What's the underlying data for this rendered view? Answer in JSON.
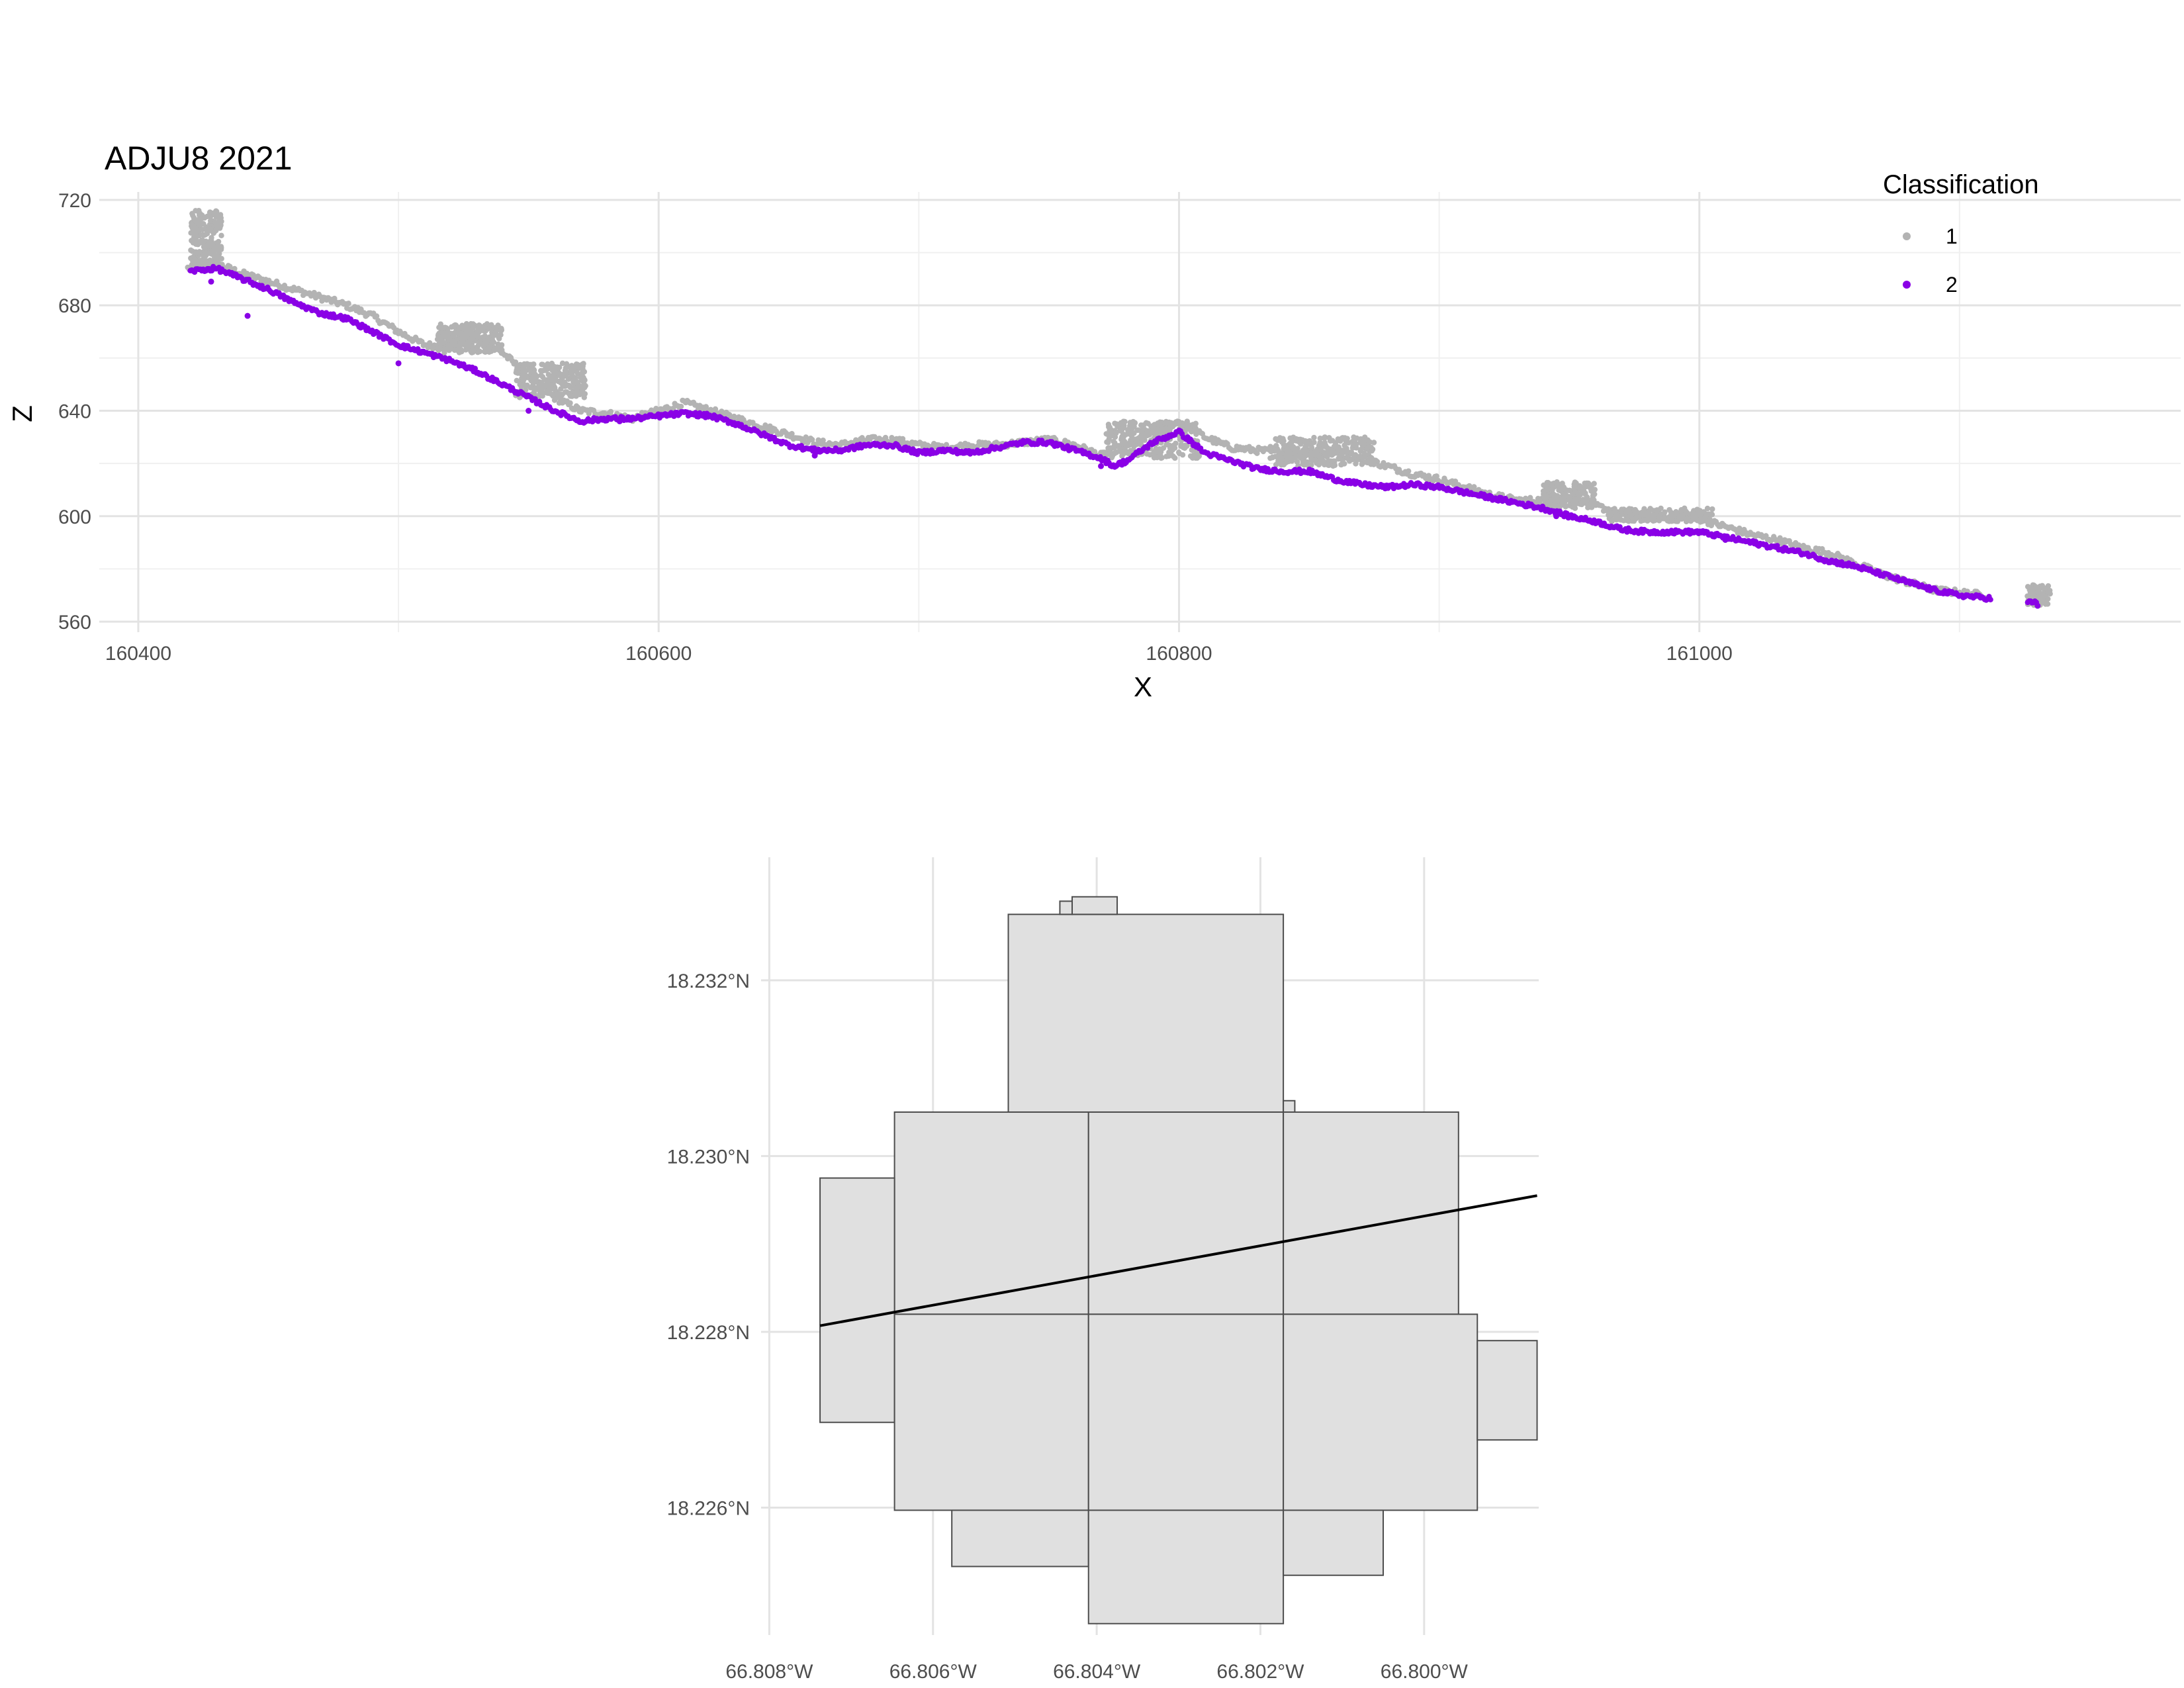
{
  "colors": {
    "background": "#ffffff",
    "grid_major": "#e3e3e3",
    "grid_minor": "#f0f0f0",
    "class_1": "#b3b3b3",
    "class_2": "#8a00e6",
    "tile_fill": "#e0e0e0",
    "tile_stroke": "#4d4d4d",
    "line": "#000000"
  },
  "chart_data": [
    {
      "type": "scatter",
      "title": "ADJU8 2021",
      "xlabel": "X",
      "ylabel": "Z",
      "xlim": [
        160385,
        161185
      ],
      "ylim": [
        556,
        723
      ],
      "x_ticks": [
        160400,
        160600,
        160800,
        161000
      ],
      "x_tick_labels": [
        "160400",
        "160600",
        "160800",
        "161000"
      ],
      "y_ticks": [
        560,
        600,
        640,
        680,
        720
      ],
      "y_tick_labels": [
        "560",
        "600",
        "640",
        "680",
        "720"
      ],
      "grid": true,
      "legend": {
        "title": "Classification",
        "placement": "top-right",
        "entries": [
          {
            "label": "1",
            "color_key": "class_1"
          },
          {
            "label": "2",
            "color_key": "class_2"
          }
        ]
      },
      "series": [
        {
          "name": "1",
          "color_key": "class_1",
          "profile": [
            [
              160419,
              694
            ],
            [
              160424,
              695
            ],
            [
              160428,
              697
            ],
            [
              160432,
              695
            ],
            [
              160440,
              692
            ],
            [
              160450,
              689
            ],
            [
              160460,
              686
            ],
            [
              160470,
              683
            ],
            [
              160480,
              680
            ],
            [
              160490,
              676
            ],
            [
              160500,
              670
            ],
            [
              160510,
              665
            ],
            [
              160520,
              664
            ],
            [
              160530,
              668
            ],
            [
              160540,
              662
            ],
            [
              160550,
              653
            ],
            [
              160560,
              645
            ],
            [
              160570,
              640
            ],
            [
              160580,
              639
            ],
            [
              160590,
              637
            ],
            [
              160600,
              640
            ],
            [
              160610,
              643
            ],
            [
              160620,
              640
            ],
            [
              160630,
              637
            ],
            [
              160640,
              634
            ],
            [
              160650,
              631
            ],
            [
              160660,
              628
            ],
            [
              160670,
              627
            ],
            [
              160680,
              629
            ],
            [
              160690,
              629
            ],
            [
              160700,
              627
            ],
            [
              160710,
              626
            ],
            [
              160720,
              627
            ],
            [
              160730,
              627
            ],
            [
              160740,
              628
            ],
            [
              160750,
              629
            ],
            [
              160760,
              627
            ],
            [
              160770,
              623
            ],
            [
              160780,
              627
            ],
            [
              160790,
              632
            ],
            [
              160800,
              636
            ],
            [
              160810,
              630
            ],
            [
              160820,
              626
            ],
            [
              160830,
              625
            ],
            [
              160840,
              624
            ],
            [
              160850,
              624
            ],
            [
              160860,
              624
            ],
            [
              160870,
              622
            ],
            [
              160880,
              619
            ],
            [
              160890,
              616
            ],
            [
              160900,
              614
            ],
            [
              160910,
              611
            ],
            [
              160920,
              608
            ],
            [
              160930,
              606
            ],
            [
              160940,
              606
            ],
            [
              160950,
              607
            ],
            [
              160960,
              604
            ],
            [
              160970,
              601
            ],
            [
              160980,
              600
            ],
            [
              160990,
              599
            ],
            [
              161000,
              599
            ],
            [
              161010,
              596
            ],
            [
              161020,
              593
            ],
            [
              161030,
              591
            ],
            [
              161040,
              588
            ],
            [
              161050,
              586
            ],
            [
              161060,
              582
            ],
            [
              161070,
              578
            ],
            [
              161080,
              575
            ],
            [
              161090,
              572
            ],
            [
              161100,
              571
            ],
            [
              161110,
              570
            ]
          ],
          "clusters": [
            {
              "x": [
                160420,
                160432
              ],
              "z": [
                694,
                716
              ]
            },
            {
              "x": [
                160515,
                160540
              ],
              "z": [
                662,
                673
              ]
            },
            {
              "x": [
                160545,
                160572
              ],
              "z": [
                645,
                658
              ]
            },
            {
              "x": [
                160772,
                160808
              ],
              "z": [
                622,
                636
              ]
            },
            {
              "x": [
                160835,
                160875
              ],
              "z": [
                619,
                630
              ]
            },
            {
              "x": [
                160940,
                160960
              ],
              "z": [
                603,
                613
              ]
            },
            {
              "x": [
                160965,
                161005
              ],
              "z": [
                598,
                603
              ]
            },
            {
              "x": [
                161126,
                161135
              ],
              "z": [
                566,
                574
              ]
            }
          ]
        },
        {
          "name": "2",
          "color_key": "class_2",
          "profile": [
            [
              160420,
              693
            ],
            [
              160430,
              694
            ],
            [
              160440,
              690
            ],
            [
              160450,
              686
            ],
            [
              160460,
              681
            ],
            [
              160470,
              677
            ],
            [
              160480,
              675
            ],
            [
              160490,
              670
            ],
            [
              160500,
              665
            ],
            [
              160510,
              662
            ],
            [
              160520,
              659
            ],
            [
              160530,
              655
            ],
            [
              160540,
              650
            ],
            [
              160550,
              645
            ],
            [
              160560,
              640
            ],
            [
              160570,
              636
            ],
            [
              160580,
              637
            ],
            [
              160590,
              637
            ],
            [
              160600,
              638
            ],
            [
              160610,
              639
            ],
            [
              160620,
              638
            ],
            [
              160630,
              635
            ],
            [
              160640,
              631
            ],
            [
              160650,
              627
            ],
            [
              160660,
              625
            ],
            [
              160670,
              625
            ],
            [
              160680,
              627
            ],
            [
              160690,
              627
            ],
            [
              160700,
              624
            ],
            [
              160710,
              625
            ],
            [
              160720,
              624
            ],
            [
              160730,
              626
            ],
            [
              160740,
              628
            ],
            [
              160750,
              628
            ],
            [
              160760,
              625
            ],
            [
              160770,
              622
            ],
            [
              160775,
              619
            ],
            [
              160780,
              621
            ],
            [
              160790,
              628
            ],
            [
              160800,
              632
            ],
            [
              160810,
              624
            ],
            [
              160820,
              621
            ],
            [
              160830,
              618
            ],
            [
              160840,
              617
            ],
            [
              160850,
              617
            ],
            [
              160860,
              614
            ],
            [
              160870,
              612
            ],
            [
              160880,
              611
            ],
            [
              160890,
              612
            ],
            [
              160900,
              611
            ],
            [
              160910,
              609
            ],
            [
              160920,
              607
            ],
            [
              160930,
              605
            ],
            [
              160940,
              603
            ],
            [
              160950,
              600
            ],
            [
              160960,
              598
            ],
            [
              160970,
              595
            ],
            [
              160980,
              594
            ],
            [
              160990,
              594
            ],
            [
              161000,
              594
            ],
            [
              161010,
              592
            ],
            [
              161020,
              590
            ],
            [
              161030,
              588
            ],
            [
              161040,
              586
            ],
            [
              161050,
              583
            ],
            [
              161060,
              581
            ],
            [
              161070,
              578
            ],
            [
              161080,
              575
            ],
            [
              161090,
              572
            ],
            [
              161100,
              570
            ],
            [
              161110,
              569
            ],
            [
              161130,
              567
            ]
          ],
          "outliers": [
            [
              160428,
              689
            ],
            [
              160442,
              676
            ],
            [
              160500,
              658
            ],
            [
              160550,
              640
            ],
            [
              160585,
              636
            ],
            [
              160660,
              623
            ],
            [
              160770,
              619
            ],
            [
              160945,
              600
            ],
            [
              161010,
              591
            ],
            [
              161130,
              566
            ]
          ]
        }
      ]
    },
    {
      "type": "map",
      "title": "",
      "x_ticks": [
        -66.808,
        -66.806,
        -66.804,
        -66.802,
        -66.8
      ],
      "x_tick_labels": [
        "66.808°W",
        "66.806°W",
        "66.804°W",
        "66.802°W",
        "66.800°W"
      ],
      "y_ticks": [
        18.226,
        18.228,
        18.23,
        18.232
      ],
      "y_tick_labels": [
        "18.226°N",
        "18.228°N",
        "18.230°N",
        "18.232°N"
      ],
      "xlim": [
        -66.8081,
        -66.7986
      ],
      "ylim": [
        18.22455,
        18.2334
      ],
      "grid": true,
      "tiles": [
        {
          "lon": [
            -66.80508,
            -66.80172
          ],
          "lat": [
            18.2305,
            18.23275
          ]
        },
        {
          "lon": [
            -66.8043,
            -66.80375
          ],
          "lat": [
            18.23275,
            18.23295
          ]
        },
        {
          "lon": [
            -66.80445,
            -66.8043
          ],
          "lat": [
            18.23275,
            18.2329
          ]
        },
        {
          "lon": [
            -66.80172,
            -66.80158
          ],
          "lat": [
            18.2305,
            18.23063
          ]
        },
        {
          "lon": [
            -66.80647,
            -66.8041
          ],
          "lat": [
            18.2282,
            18.2305
          ]
        },
        {
          "lon": [
            -66.8041,
            -66.80172
          ],
          "lat": [
            18.2282,
            18.2305
          ]
        },
        {
          "lon": [
            -66.80172,
            -66.79958
          ],
          "lat": [
            18.2282,
            18.2305
          ]
        },
        {
          "lon": [
            -66.80738,
            -66.80647
          ],
          "lat": [
            18.22697,
            18.22975
          ]
        },
        {
          "lon": [
            -66.80647,
            -66.8041
          ],
          "lat": [
            18.22597,
            18.2282
          ]
        },
        {
          "lon": [
            -66.8041,
            -66.80172
          ],
          "lat": [
            18.22597,
            18.2282
          ]
        },
        {
          "lon": [
            -66.80172,
            -66.79935
          ],
          "lat": [
            18.22597,
            18.2282
          ]
        },
        {
          "lon": [
            -66.79935,
            -66.79862
          ],
          "lat": [
            18.22677,
            18.2279
          ]
        },
        {
          "lon": [
            -66.80577,
            -66.8041
          ],
          "lat": [
            18.22533,
            18.22597
          ]
        },
        {
          "lon": [
            -66.8041,
            -66.80172
          ],
          "lat": [
            18.22468,
            18.22597
          ]
        },
        {
          "lon": [
            -66.80172,
            -66.8005
          ],
          "lat": [
            18.22523,
            18.22597
          ]
        }
      ],
      "line": [
        [
          -66.80738,
          18.22807
        ],
        [
          -66.79862,
          18.22955
        ]
      ]
    }
  ]
}
